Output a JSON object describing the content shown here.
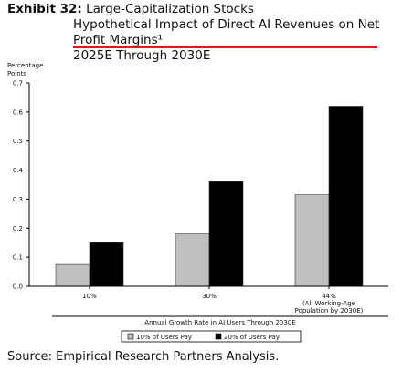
{
  "header": {
    "exhibit_label": "Exhibit 32:",
    "exhibit_subject": "Large-Capitalization Stocks",
    "title_line1": "Hypothetical Impact of Direct AI Revenues on Net",
    "title_line2": "Profit Margins¹",
    "title_line3": "2025E Through 2030E",
    "underline_color": "#e0181f"
  },
  "chart_data": {
    "type": "bar",
    "ylabel": "Percentage Points",
    "xlabel": "Annual Growth Rate in AI Users Through 2030E",
    "ylim": [
      0,
      0.7
    ],
    "yticks": [
      "0.0",
      "0.1",
      "0.2",
      "0.3",
      "0.4",
      "0.5",
      "0.6",
      "0.7"
    ],
    "categories": [
      "10%",
      "30%",
      "44%\n(All Working-Age\nPopulation by 2030E)"
    ],
    "series": [
      {
        "name": "10% of Users Pay",
        "values": [
          0.075,
          0.18,
          0.315
        ],
        "color": "#c0c0c0"
      },
      {
        "name": "20% of Users Pay",
        "values": [
          0.15,
          0.36,
          0.62
        ],
        "color": "#000000"
      }
    ],
    "legend_position": "bottom"
  },
  "footer": {
    "source": "Source: Empirical Research Partners Analysis."
  }
}
